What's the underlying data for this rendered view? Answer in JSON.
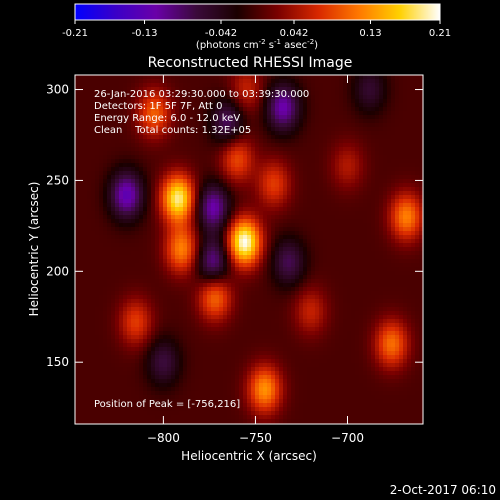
{
  "colors": {
    "background": "#000000",
    "text": "#ffffff",
    "scale": [
      "#0000ff",
      "#3a00c8",
      "#6a00a8",
      "#3a0a3a",
      "#1a0000",
      "#7a0000",
      "#d82800",
      "#ff7800",
      "#ffd000",
      "#ffffff"
    ]
  },
  "chart_data": {
    "type": "heatmap",
    "title": "Reconstructed RHESSI Image",
    "xlabel": "Heliocentric X (arcsec)",
    "ylabel": "Heliocentric Y (arcsec)",
    "xlim": [
      -848,
      -659
    ],
    "ylim": [
      116,
      308
    ],
    "x_ticks": [
      -800,
      -750,
      -700
    ],
    "y_ticks": [
      150,
      200,
      250,
      300
    ],
    "grid": false,
    "colorbar": {
      "location": "top",
      "range": [
        -0.21,
        0.21
      ],
      "tick_values": [
        -0.21,
        -0.13,
        -0.042,
        0.042,
        0.13,
        0.21
      ],
      "tick_labels": [
        "-0.21",
        "-0.13",
        "-0.042",
        "0.042",
        "0.13",
        "0.21"
      ],
      "unit_prefix": "(photons cm",
      "unit_exp1": "-2",
      "unit_mid1": " s",
      "unit_exp2": "-1",
      "unit_mid2": " asec",
      "unit_exp3": "-2",
      "unit_suffix": ")"
    },
    "annotations": [
      "26-Jan-2016 03:29:30.000 to 03:39:30.000",
      "Detectors: 1F 5F 7F, Att 0",
      "Energy Range: 6.0 - 12.0 keV",
      "Clean    Total counts: 1.32E+05"
    ],
    "peak_label": "Position of Peak = [-756,216]",
    "peak": {
      "x": -756,
      "y": 216
    },
    "sources": [
      {
        "x": -792,
        "y": 240,
        "value": 0.19
      },
      {
        "x": -756,
        "y": 216,
        "value": 0.21
      },
      {
        "x": -790,
        "y": 212,
        "value": 0.12
      },
      {
        "x": -772,
        "y": 186,
        "value": 0.11
      },
      {
        "x": -760,
        "y": 262,
        "value": 0.09
      },
      {
        "x": -740,
        "y": 248,
        "value": 0.08
      },
      {
        "x": -745,
        "y": 135,
        "value": 0.13
      },
      {
        "x": -815,
        "y": 172,
        "value": 0.08
      },
      {
        "x": -805,
        "y": 287,
        "value": 0.1
      },
      {
        "x": -668,
        "y": 230,
        "value": 0.12
      },
      {
        "x": -676,
        "y": 160,
        "value": 0.11
      },
      {
        "x": -700,
        "y": 258,
        "value": 0.05
      },
      {
        "x": -720,
        "y": 178,
        "value": 0.06
      },
      {
        "x": -755,
        "y": 300,
        "value": 0.06
      },
      {
        "x": -820,
        "y": 242,
        "value": -0.13
      },
      {
        "x": -773,
        "y": 235,
        "value": -0.12
      },
      {
        "x": -773,
        "y": 205,
        "value": -0.11
      },
      {
        "x": -765,
        "y": 282,
        "value": -0.09
      },
      {
        "x": -735,
        "y": 290,
        "value": -0.12
      },
      {
        "x": -732,
        "y": 205,
        "value": -0.08
      },
      {
        "x": -800,
        "y": 150,
        "value": -0.07
      },
      {
        "x": -688,
        "y": 300,
        "value": -0.06
      }
    ]
  },
  "footer": {
    "date": "2-Oct-2017 06:10"
  }
}
